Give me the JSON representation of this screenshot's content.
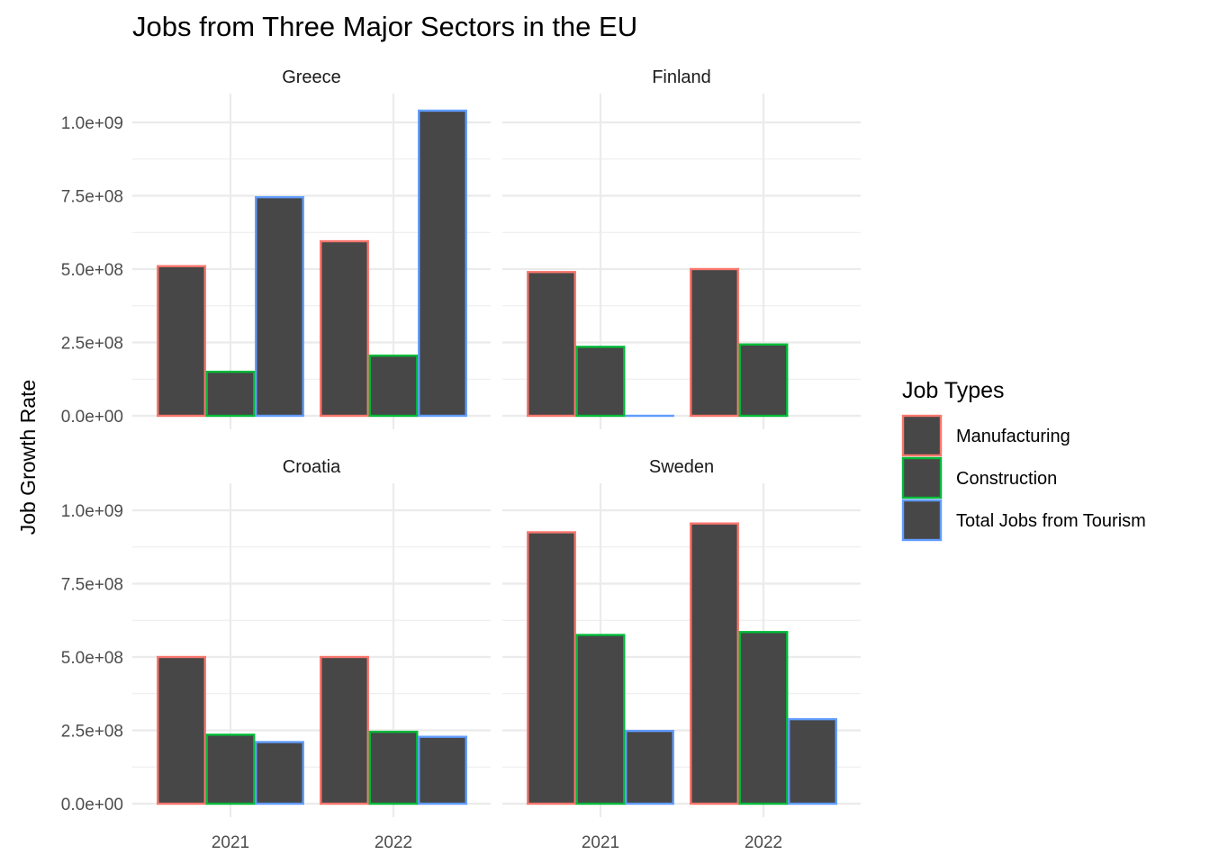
{
  "chart_data": {
    "type": "bar",
    "title": "Jobs from Three Major Sectors in the EU",
    "xlabel": "",
    "ylabel": "Job Growth Rate",
    "ylim": [
      0,
      1000000000
    ],
    "categories": [
      "2021",
      "2022"
    ],
    "y_ticks": [
      "0.0e+00",
      "2.5e+08",
      "5.0e+08",
      "7.5e+08",
      "1.0e+09"
    ],
    "grid": true,
    "legend": {
      "title": "Job Types",
      "position": "right",
      "entries": [
        {
          "label": "Manufacturing",
          "color": "#F8766D"
        },
        {
          "label": "Construction",
          "color": "#00BA38"
        },
        {
          "label": "Total Jobs from Tourism",
          "color": "#619CFF"
        }
      ]
    },
    "fill_color": "#474747",
    "panels": [
      {
        "name": "Greece",
        "series": [
          {
            "name": "Manufacturing",
            "values": [
              510000000,
              595000000
            ]
          },
          {
            "name": "Construction",
            "values": [
              150000000,
              205000000
            ]
          },
          {
            "name": "Total Jobs from Tourism",
            "values": [
              745000000,
              1040000000
            ]
          }
        ]
      },
      {
        "name": "Finland",
        "series": [
          {
            "name": "Manufacturing",
            "values": [
              490000000,
              500000000
            ]
          },
          {
            "name": "Construction",
            "values": [
              235000000,
              243000000
            ]
          },
          {
            "name": "Total Jobs from Tourism",
            "values": [
              0,
              null
            ]
          }
        ]
      },
      {
        "name": "Croatia",
        "series": [
          {
            "name": "Manufacturing",
            "values": [
              500000000,
              500000000
            ]
          },
          {
            "name": "Construction",
            "values": [
              235000000,
              245000000
            ]
          },
          {
            "name": "Total Jobs from Tourism",
            "values": [
              210000000,
              228000000
            ]
          }
        ]
      },
      {
        "name": "Sweden",
        "series": [
          {
            "name": "Manufacturing",
            "values": [
              925000000,
              955000000
            ]
          },
          {
            "name": "Construction",
            "values": [
              575000000,
              585000000
            ]
          },
          {
            "name": "Total Jobs from Tourism",
            "values": [
              248000000,
              288000000
            ]
          }
        ]
      }
    ]
  }
}
